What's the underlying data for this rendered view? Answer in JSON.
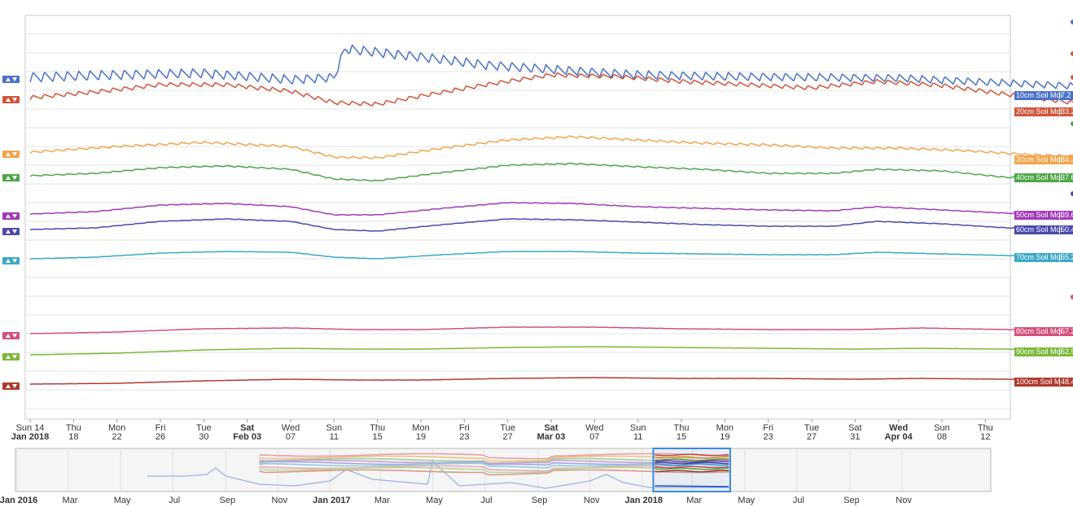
{
  "chart_data": {
    "type": "line",
    "title": "",
    "xlabel": "",
    "ylabel": "",
    "grid": true,
    "legend": "right-edge value labels",
    "x_range": [
      "2018-01-14",
      "2018-04-14"
    ],
    "x_ticks": [
      {
        "top": "Sun 14",
        "bottom": "Jan 2018",
        "date": "2018-01-14",
        "bold": false
      },
      {
        "top": "Thu",
        "bottom": "18",
        "date": "2018-01-18",
        "bold": false
      },
      {
        "top": "Mon",
        "bottom": "22",
        "date": "2018-01-22",
        "bold": false
      },
      {
        "top": "Fri",
        "bottom": "26",
        "date": "2018-01-26",
        "bold": false
      },
      {
        "top": "Tue",
        "bottom": "30",
        "date": "2018-01-30",
        "bold": false
      },
      {
        "top": "Sat",
        "bottom": "Feb 03",
        "date": "2018-02-03",
        "bold": true
      },
      {
        "top": "Wed",
        "bottom": "07",
        "date": "2018-02-07",
        "bold": false
      },
      {
        "top": "Sun",
        "bottom": "11",
        "date": "2018-02-11",
        "bold": false
      },
      {
        "top": "Thu",
        "bottom": "15",
        "date": "2018-02-15",
        "bold": false
      },
      {
        "top": "Mon",
        "bottom": "19",
        "date": "2018-02-19",
        "bold": false
      },
      {
        "top": "Fri",
        "bottom": "23",
        "date": "2018-02-23",
        "bold": false
      },
      {
        "top": "Tue",
        "bottom": "27",
        "date": "2018-02-27",
        "bold": false
      },
      {
        "top": "Sat",
        "bottom": "Mar 03",
        "date": "2018-03-03",
        "bold": true
      },
      {
        "top": "Wed",
        "bottom": "07",
        "date": "2018-03-07",
        "bold": false
      },
      {
        "top": "Sun",
        "bottom": "11",
        "date": "2018-03-11",
        "bold": false
      },
      {
        "top": "Thu",
        "bottom": "15",
        "date": "2018-03-15",
        "bold": false
      },
      {
        "top": "Mon",
        "bottom": "19",
        "date": "2018-03-19",
        "bold": false
      },
      {
        "top": "Fri",
        "bottom": "23",
        "date": "2018-03-23",
        "bold": false
      },
      {
        "top": "Tue",
        "bottom": "27",
        "date": "2018-03-27",
        "bold": false
      },
      {
        "top": "Sat",
        "bottom": "31",
        "date": "2018-03-31",
        "bold": false
      },
      {
        "top": "Wed",
        "bottom": "Apr 04",
        "date": "2018-04-04",
        "bold": true
      },
      {
        "top": "Sun",
        "bottom": "08",
        "date": "2018-04-08",
        "bold": false
      },
      {
        "top": "Thu",
        "bottom": "12",
        "date": "2018-04-12",
        "bold": false
      }
    ],
    "series": [
      {
        "name": "10cm Soil Moi",
        "value_label": "7.2",
        "color": "#4a72c8",
        "points": [
          [
            0,
            95
          ],
          [
            8,
            92
          ],
          [
            16,
            90
          ],
          [
            24,
            98
          ],
          [
            28,
            95
          ],
          [
            29,
            60
          ],
          [
            31,
            63
          ],
          [
            36,
            70
          ],
          [
            42,
            80
          ],
          [
            50,
            87
          ],
          [
            56,
            92
          ],
          [
            64,
            94
          ],
          [
            72,
            95
          ],
          [
            80,
            96
          ],
          [
            90,
            102
          ],
          [
            100,
            108
          ],
          [
            110,
            111
          ],
          [
            118,
            112
          ],
          [
            126,
            117
          ]
        ],
        "amp": 6,
        "period": 1.05,
        "amp_decay": 0.5
      },
      {
        "name": "20cm Soil Moi",
        "value_label": "33.2",
        "color": "#d0553a",
        "points": [
          [
            0,
            120
          ],
          [
            6,
            113
          ],
          [
            12,
            104
          ],
          [
            18,
            104
          ],
          [
            24,
            112
          ],
          [
            28,
            126
          ],
          [
            32,
            128
          ],
          [
            36,
            118
          ],
          [
            42,
            104
          ],
          [
            48,
            92
          ],
          [
            54,
            94
          ],
          [
            60,
            100
          ],
          [
            66,
            104
          ],
          [
            72,
            108
          ],
          [
            78,
            100
          ],
          [
            84,
            105
          ],
          [
            90,
            116
          ],
          [
            96,
            126
          ],
          [
            102,
            124
          ],
          [
            108,
            122
          ],
          [
            114,
            128
          ],
          [
            118,
            125
          ],
          [
            126,
            137
          ]
        ],
        "amp": 2.5,
        "period": 1.05,
        "amp_decay": 0
      },
      {
        "name": "30cm Soil Moi",
        "value_label": "34.5",
        "color": "#f2a44a",
        "points": [
          [
            0,
            187
          ],
          [
            8,
            180
          ],
          [
            16,
            175
          ],
          [
            24,
            180
          ],
          [
            28,
            193
          ],
          [
            32,
            194
          ],
          [
            38,
            182
          ],
          [
            44,
            172
          ],
          [
            50,
            168
          ],
          [
            56,
            172
          ],
          [
            62,
            176
          ],
          [
            68,
            178
          ],
          [
            74,
            182
          ],
          [
            80,
            182
          ],
          [
            86,
            185
          ],
          [
            92,
            190
          ],
          [
            100,
            194
          ],
          [
            108,
            196
          ],
          [
            116,
            198
          ],
          [
            120,
            193
          ],
          [
            126,
            196
          ]
        ],
        "amp": 1.3,
        "period": 1.05,
        "amp_decay": 0
      },
      {
        "name": "40cm Soil Moi",
        "value_label": "37.6",
        "color": "#4da64a",
        "points": [
          [
            0,
            216
          ],
          [
            6,
            213
          ],
          [
            12,
            206
          ],
          [
            18,
            204
          ],
          [
            24,
            208
          ],
          [
            28,
            220
          ],
          [
            32,
            222
          ],
          [
            38,
            212
          ],
          [
            44,
            203
          ],
          [
            50,
            201
          ],
          [
            56,
            205
          ],
          [
            62,
            208
          ],
          [
            68,
            213
          ],
          [
            74,
            213
          ],
          [
            78,
            208
          ],
          [
            84,
            210
          ],
          [
            90,
            218
          ],
          [
            96,
            217
          ],
          [
            102,
            220
          ],
          [
            110,
            221
          ],
          [
            118,
            224
          ],
          [
            126,
            218
          ]
        ],
        "amp": 0.7,
        "period": 1.05,
        "amp_decay": 0
      },
      {
        "name": "50cm Soil Moi",
        "value_label": "39.6",
        "color": "#a13ab8",
        "points": [
          [
            0,
            263
          ],
          [
            6,
            260
          ],
          [
            12,
            252
          ],
          [
            18,
            250
          ],
          [
            24,
            254
          ],
          [
            28,
            264
          ],
          [
            32,
            264
          ],
          [
            38,
            256
          ],
          [
            44,
            249
          ],
          [
            50,
            250
          ],
          [
            56,
            254
          ],
          [
            62,
            256
          ],
          [
            68,
            258
          ],
          [
            74,
            259
          ],
          [
            78,
            254
          ],
          [
            84,
            258
          ],
          [
            90,
            262
          ],
          [
            96,
            264
          ],
          [
            102,
            265
          ],
          [
            110,
            266
          ],
          [
            118,
            268
          ],
          [
            126,
            264
          ]
        ],
        "amp": 0.4,
        "period": 1.05,
        "amp_decay": 0
      },
      {
        "name": "60cm Soil Moi",
        "value_label": "50.4",
        "color": "#4a4aaa",
        "points": [
          [
            0,
            282
          ],
          [
            6,
            280
          ],
          [
            12,
            272
          ],
          [
            18,
            269
          ],
          [
            24,
            272
          ],
          [
            28,
            282
          ],
          [
            32,
            284
          ],
          [
            38,
            276
          ],
          [
            44,
            269
          ],
          [
            50,
            270
          ],
          [
            56,
            273
          ],
          [
            62,
            276
          ],
          [
            68,
            278
          ],
          [
            74,
            278
          ],
          [
            78,
            272
          ],
          [
            84,
            275
          ],
          [
            90,
            280
          ],
          [
            96,
            282
          ],
          [
            102,
            283
          ],
          [
            110,
            285
          ],
          [
            118,
            285
          ],
          [
            126,
            282
          ]
        ],
        "amp": 0.3,
        "period": 1.05,
        "amp_decay": 0
      },
      {
        "name": "70cm Soil Moi",
        "value_label": "55.2",
        "color": "#3aa8c8",
        "points": [
          [
            0,
            318
          ],
          [
            6,
            316
          ],
          [
            12,
            311
          ],
          [
            18,
            309
          ],
          [
            24,
            310
          ],
          [
            28,
            316
          ],
          [
            32,
            318
          ],
          [
            38,
            313
          ],
          [
            44,
            309
          ],
          [
            50,
            309
          ],
          [
            56,
            311
          ],
          [
            62,
            312
          ],
          [
            68,
            313
          ],
          [
            74,
            313
          ],
          [
            78,
            310
          ],
          [
            84,
            312
          ],
          [
            90,
            314
          ],
          [
            96,
            316
          ],
          [
            102,
            316
          ],
          [
            110,
            317
          ],
          [
            118,
            318
          ],
          [
            126,
            316
          ]
        ],
        "amp": 0.2,
        "period": 1.05,
        "amp_decay": 0
      },
      {
        "name": "80cm Soil Moi",
        "value_label": "57.2",
        "color": "#d4507a",
        "points": [
          [
            0,
            410
          ],
          [
            8,
            408
          ],
          [
            16,
            404
          ],
          [
            24,
            403
          ],
          [
            30,
            405
          ],
          [
            36,
            405
          ],
          [
            44,
            402
          ],
          [
            52,
            402
          ],
          [
            60,
            404
          ],
          [
            68,
            405
          ],
          [
            76,
            405
          ],
          [
            82,
            403
          ],
          [
            90,
            405
          ],
          [
            100,
            407
          ],
          [
            110,
            408
          ],
          [
            118,
            409
          ],
          [
            126,
            407
          ]
        ],
        "amp": 0.15,
        "period": 1.05,
        "amp_decay": 0
      },
      {
        "name": "90cm Soil Moi",
        "value_label": "52.9",
        "color": "#7ab83a",
        "points": [
          [
            0,
            436
          ],
          [
            8,
            434
          ],
          [
            16,
            430
          ],
          [
            24,
            428
          ],
          [
            30,
            429
          ],
          [
            36,
            429
          ],
          [
            44,
            427
          ],
          [
            52,
            426
          ],
          [
            60,
            427
          ],
          [
            68,
            428
          ],
          [
            76,
            429
          ],
          [
            82,
            428
          ],
          [
            90,
            429
          ],
          [
            100,
            431
          ],
          [
            110,
            432
          ],
          [
            118,
            433
          ],
          [
            126,
            432
          ]
        ],
        "amp": 0.1,
        "period": 1.05,
        "amp_decay": 0
      },
      {
        "name": "100cm Soil M",
        "value_label": "48.4",
        "color": "#b03a30",
        "points": [
          [
            0,
            472
          ],
          [
            8,
            471
          ],
          [
            16,
            468
          ],
          [
            24,
            466
          ],
          [
            30,
            467
          ],
          [
            36,
            467
          ],
          [
            44,
            465
          ],
          [
            52,
            464
          ],
          [
            60,
            465
          ],
          [
            68,
            465
          ],
          [
            76,
            466
          ],
          [
            82,
            465
          ],
          [
            90,
            466
          ],
          [
            100,
            468
          ],
          [
            110,
            469
          ],
          [
            118,
            469
          ],
          [
            126,
            469
          ]
        ],
        "amp": 0.1,
        "period": 1.05,
        "amp_decay": 0
      }
    ],
    "navigator": {
      "x_ticks": [
        {
          "label": "Jan 2016",
          "date": "2016-01-01",
          "bold": true
        },
        {
          "label": "Mar",
          "date": "2016-03-01",
          "bold": false
        },
        {
          "label": "May",
          "date": "2016-05-01",
          "bold": false
        },
        {
          "label": "Jul",
          "date": "2016-07-01",
          "bold": false
        },
        {
          "label": "Sep",
          "date": "2016-09-01",
          "bold": false
        },
        {
          "label": "Nov",
          "date": "2016-11-01",
          "bold": false
        },
        {
          "label": "Jan 2017",
          "date": "2017-01-01",
          "bold": true
        },
        {
          "label": "Mar",
          "date": "2017-03-01",
          "bold": false
        },
        {
          "label": "May",
          "date": "2017-05-01",
          "bold": false
        },
        {
          "label": "Jul",
          "date": "2017-07-01",
          "bold": false
        },
        {
          "label": "Sep",
          "date": "2017-09-01",
          "bold": false
        },
        {
          "label": "Nov",
          "date": "2017-11-01",
          "bold": false
        },
        {
          "label": "Jan 2018",
          "date": "2018-01-01",
          "bold": true
        },
        {
          "label": "Mar",
          "date": "2018-03-01",
          "bold": false
        },
        {
          "label": "May",
          "date": "2018-05-01",
          "bold": false
        },
        {
          "label": "Jul",
          "date": "2018-07-01",
          "bold": false
        },
        {
          "label": "Sep",
          "date": "2018-09-01",
          "bold": false
        },
        {
          "label": "Nov",
          "date": "2018-11-01",
          "bold": false
        }
      ],
      "selected_range": [
        "2018-01-14",
        "2018-04-14"
      ]
    }
  }
}
